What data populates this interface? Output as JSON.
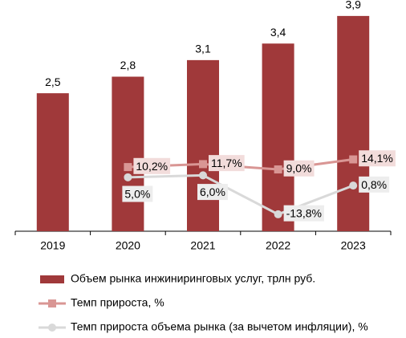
{
  "chart_data": {
    "type": "bar",
    "categories": [
      "2019",
      "2020",
      "2021",
      "2022",
      "2023"
    ],
    "ylim": [
      0,
      4
    ],
    "y2lim": [
      -22.4,
      89.8
    ],
    "series": [
      {
        "name": "Объем рынка инжиниринговых услуг, трлн руб.",
        "type": "bar",
        "color": "#a0393a",
        "values": [
          2.5,
          2.8,
          3.1,
          3.4,
          3.9
        ],
        "value_labels": [
          "2,5",
          "2,8",
          "3,1",
          "3,4",
          "3,9"
        ]
      },
      {
        "name": "Темп прироста, %",
        "type": "line",
        "axis": "y2",
        "color": "#d99694",
        "marker": "square",
        "values": [
          null,
          10.2,
          11.7,
          9.0,
          14.1
        ],
        "value_labels": [
          null,
          "10,2%",
          "11,7%",
          "9,0%",
          "14,1%"
        ]
      },
      {
        "name": "Темп прироста объема рынка (за вычетом инфляции), %",
        "type": "line",
        "axis": "y2",
        "color": "#d9d9d9",
        "marker": "circle",
        "values": [
          null,
          5.0,
          6.0,
          -13.8,
          0.8
        ],
        "value_labels": [
          null,
          "5,0%",
          "6,0%",
          "-13,8%",
          "0,8%"
        ]
      }
    ]
  }
}
